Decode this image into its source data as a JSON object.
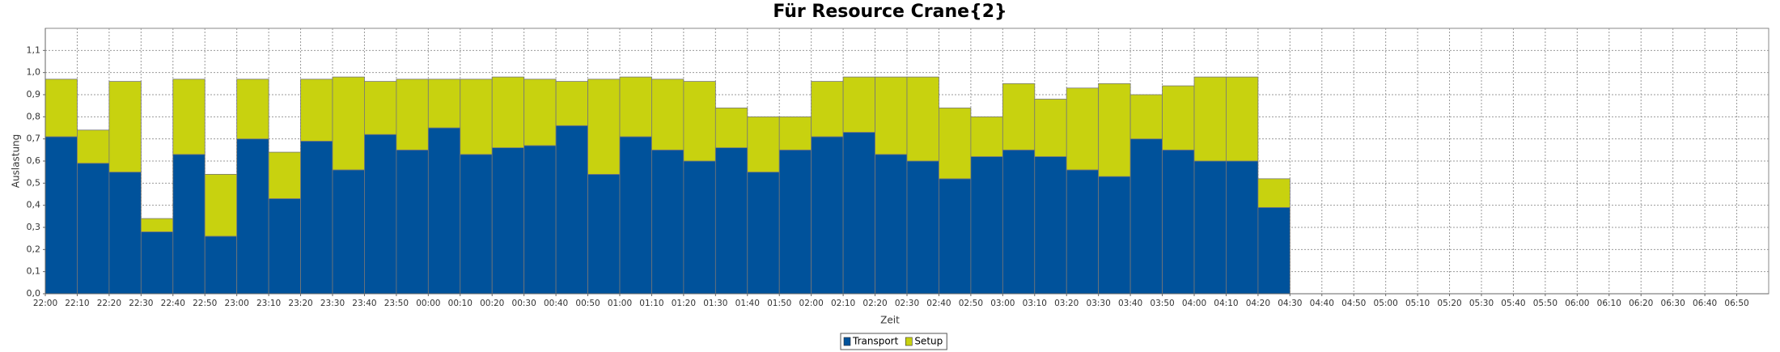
{
  "chart_data": {
    "type": "stacked-bar",
    "title": "Für Resource Crane{2}",
    "x_label": "Zeit",
    "y_label": "Auslastung",
    "categories": [
      "22:00",
      "22:10",
      "22:20",
      "22:30",
      "22:40",
      "22:50",
      "23:00",
      "23:10",
      "23:20",
      "23:30",
      "23:40",
      "23:50",
      "00:00",
      "00:10",
      "00:20",
      "00:30",
      "00:40",
      "00:50",
      "01:00",
      "01:10",
      "01:20",
      "01:30",
      "01:40",
      "01:50",
      "02:00",
      "02:10",
      "02:20",
      "02:30",
      "02:40",
      "02:50",
      "03:00",
      "03:10",
      "03:20",
      "03:30",
      "03:40",
      "03:50",
      "04:00",
      "04:10",
      "04:20",
      "04:30",
      "04:40",
      "04:50",
      "05:00",
      "05:10",
      "05:20",
      "05:30",
      "05:40",
      "05:50",
      "06:00",
      "06:10",
      "06:20",
      "06:30",
      "06:40",
      "06:50"
    ],
    "series": [
      {
        "name": "Transport",
        "color": "#00529b",
        "values": [
          0.71,
          0.59,
          0.55,
          0.28,
          0.63,
          0.26,
          0.7,
          0.43,
          0.69,
          0.56,
          0.72,
          0.65,
          0.75,
          0.63,
          0.66,
          0.67,
          0.76,
          0.54,
          0.71,
          0.65,
          0.6,
          0.66,
          0.55,
          0.65,
          0.71,
          0.73,
          0.63,
          0.6,
          0.52,
          0.62,
          0.65,
          0.62,
          0.56,
          0.53,
          0.7,
          0.65,
          0.6,
          0.6,
          0.39,
          null,
          null,
          null,
          null,
          null,
          null,
          null,
          null,
          null,
          null,
          null,
          null,
          null,
          null,
          null
        ]
      },
      {
        "name": "Setup",
        "color": "#c8d20f",
        "values": [
          0.26,
          0.15,
          0.41,
          0.06,
          0.34,
          0.28,
          0.27,
          0.21,
          0.28,
          0.42,
          0.24,
          0.32,
          0.22,
          0.34,
          0.32,
          0.3,
          0.2,
          0.43,
          0.27,
          0.32,
          0.36,
          0.18,
          0.25,
          0.15,
          0.25,
          0.25,
          0.35,
          0.38,
          0.32,
          0.18,
          0.3,
          0.26,
          0.37,
          0.42,
          0.2,
          0.29,
          0.38,
          0.38,
          0.13,
          null,
          null,
          null,
          null,
          null,
          null,
          null,
          null,
          null,
          null,
          null,
          null,
          null,
          null,
          null
        ]
      }
    ],
    "ylim": [
      0,
      1.2
    ],
    "yticks": [
      {
        "value": 0,
        "label": "0,0"
      },
      {
        "value": 0.1,
        "label": "0,1"
      },
      {
        "value": 0.2,
        "label": "0,2"
      },
      {
        "value": 0.3,
        "label": "0,3"
      },
      {
        "value": 0.4,
        "label": "0,4"
      },
      {
        "value": 0.5,
        "label": "0,5"
      },
      {
        "value": 0.6,
        "label": "0,6"
      },
      {
        "value": 0.7,
        "label": "0,7"
      },
      {
        "value": 0.8,
        "label": "0,8"
      },
      {
        "value": 0.9,
        "label": "0,9"
      },
      {
        "value": 1.0,
        "label": "1,0"
      },
      {
        "value": 1.1,
        "label": "1,1"
      }
    ],
    "grid": true,
    "legend": "bottom"
  }
}
